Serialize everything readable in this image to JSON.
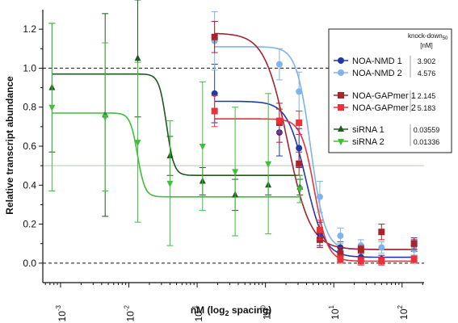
{
  "chart_data": {
    "type": "scatter",
    "xlabel": "nM (log",
    "xlabel_sub": "2",
    "xlabel_tail": " spacing)",
    "ylabel": "Relative transcript abundance",
    "xscale": "log",
    "xlim": [
      0.00055,
      210
    ],
    "ylim": [
      -0.1,
      1.3
    ],
    "y_ticks": [
      "0.0",
      "0.2",
      "0.4",
      "0.6",
      "0.8",
      "1.0",
      "1.2"
    ],
    "x_ticks": [
      {
        "value": 0.001,
        "base": "10",
        "exp": "-3"
      },
      {
        "value": 0.01,
        "base": "10",
        "exp": "-2"
      },
      {
        "value": 0.1,
        "base": "10",
        "exp": "-1"
      },
      {
        "value": 1,
        "base": "10",
        "exp": "0"
      },
      {
        "value": 10,
        "base": "10",
        "exp": "1"
      },
      {
        "value": 100,
        "base": "10",
        "exp": "2"
      }
    ],
    "reference_lines": [
      {
        "y": 1.0,
        "style": "dashed"
      },
      {
        "y": 0.0,
        "style": "dashed"
      },
      {
        "y": 0.5,
        "style": "solid-thin"
      }
    ],
    "legend": {
      "position": "top-right",
      "header": "knock-down",
      "header_sub": "50",
      "unit": "[nM]"
    },
    "series": [
      {
        "name": "NOA-NMD 1",
        "color": "#1f3aa8",
        "marker": "circle",
        "kd50": "3.902",
        "fit": {
          "top": 0.83,
          "bottom": 0.03,
          "ec50": 3.9,
          "slope": 3.2,
          "xmin": 0.18,
          "xmax": 160
        },
        "points": [
          {
            "x": 0.18,
            "y": 0.87,
            "err": 0.15
          },
          {
            "x": 1.6,
            "y": 0.67,
            "err": 0.12
          },
          {
            "x": 3.1,
            "y": 0.59,
            "err": 0.1
          },
          {
            "x": 6.25,
            "y": 0.15,
            "err": 0.06
          },
          {
            "x": 12.5,
            "y": 0.08,
            "err": 0.03
          },
          {
            "x": 25,
            "y": 0.03,
            "err": 0.02
          },
          {
            "x": 50,
            "y": 0.02,
            "err": 0.02
          },
          {
            "x": 150,
            "y": 0.09,
            "err": 0.03
          }
        ]
      },
      {
        "name": "NOA-NMD 2",
        "color": "#7fb3ea",
        "marker": "circle",
        "kd50": "4.576",
        "fit": {
          "top": 1.11,
          "bottom": 0.07,
          "ec50": 4.6,
          "slope": 4.2,
          "xmin": 0.18,
          "xmax": 160
        },
        "points": [
          {
            "x": 0.18,
            "y": 1.14,
            "err": 0.15
          },
          {
            "x": 1.6,
            "y": 1.02,
            "err": 0.08
          },
          {
            "x": 3.1,
            "y": 0.88,
            "err": 0.1
          },
          {
            "x": 6.25,
            "y": 0.34,
            "err": 0.08
          },
          {
            "x": 12.5,
            "y": 0.14,
            "err": 0.04
          },
          {
            "x": 25,
            "y": 0.09,
            "err": 0.03
          },
          {
            "x": 50,
            "y": 0.08,
            "err": 0.03
          },
          {
            "x": 150,
            "y": 0.07,
            "err": 0.03
          }
        ]
      },
      {
        "name": "NOA-GAPmer 1",
        "color": "#a8232e",
        "marker": "square",
        "kd50": "2.145",
        "fit": {
          "top": 1.18,
          "bottom": 0.07,
          "ec50": 2.1,
          "slope": 2.6,
          "xmin": 0.18,
          "xmax": 160
        },
        "points": [
          {
            "x": 0.18,
            "y": 1.16,
            "err": 0.08
          },
          {
            "x": 1.6,
            "y": 0.72,
            "err": 0.1
          },
          {
            "x": 3.1,
            "y": 0.51,
            "err": 0.06
          },
          {
            "x": 6.25,
            "y": 0.12,
            "err": 0.04
          },
          {
            "x": 12.5,
            "y": 0.05,
            "err": 0.03
          },
          {
            "x": 25,
            "y": 0.07,
            "err": 0.02
          },
          {
            "x": 50,
            "y": 0.16,
            "err": 0.04
          },
          {
            "x": 150,
            "y": 0.1,
            "err": 0.03
          }
        ]
      },
      {
        "name": "NOA-GAPmer 2",
        "color": "#e8333a",
        "marker": "square",
        "kd50": "5.183",
        "fit": {
          "top": 0.74,
          "bottom": 0.01,
          "ec50": 5.2,
          "slope": 4.5,
          "xmin": 0.18,
          "xmax": 160
        },
        "points": [
          {
            "x": 0.18,
            "y": 0.78,
            "err": 0.08
          },
          {
            "x": 1.6,
            "y": 0.73,
            "err": 0.06
          },
          {
            "x": 3.1,
            "y": 0.72,
            "err": 0.06
          },
          {
            "x": 6.25,
            "y": 0.17,
            "err": 0.05
          },
          {
            "x": 12.5,
            "y": 0.02,
            "err": 0.02
          },
          {
            "x": 25,
            "y": 0.01,
            "err": 0.02
          },
          {
            "x": 50,
            "y": 0.01,
            "err": 0.02
          },
          {
            "x": 150,
            "y": 0.02,
            "err": 0.02
          }
        ]
      },
      {
        "name": "siRNA 1",
        "color": "#1d5a1d",
        "marker": "triangle-up",
        "kd50": "0.03559",
        "fit": {
          "top": 0.97,
          "bottom": 0.45,
          "ec50": 0.0356,
          "slope": 8,
          "xmin": 0.00075,
          "xmax": 3.2
        },
        "points": [
          {
            "x": 0.00075,
            "y": 0.9,
            "err": 0.33
          },
          {
            "x": 0.0045,
            "y": 0.76,
            "err": 0.52
          },
          {
            "x": 0.0135,
            "y": 1.05,
            "err": 0.3
          },
          {
            "x": 0.04,
            "y": 0.55,
            "err": 0.1
          },
          {
            "x": 0.12,
            "y": 0.42,
            "err": 0.07
          },
          {
            "x": 0.36,
            "y": 0.35,
            "err": 0.08
          },
          {
            "x": 1.1,
            "y": 0.4,
            "err": 0.05
          },
          {
            "x": 3.2,
            "y": 0.39,
            "err": 0.04
          }
        ]
      },
      {
        "name": "siRNA 2",
        "color": "#3fbf3a",
        "marker": "triangle-down",
        "kd50": "0.01336",
        "fit": {
          "top": 0.77,
          "bottom": 0.34,
          "ec50": 0.0134,
          "slope": 8,
          "xmin": 0.00075,
          "xmax": 3.2
        },
        "points": [
          {
            "x": 0.00075,
            "y": 0.8,
            "err": 0.43
          },
          {
            "x": 0.0045,
            "y": 0.75,
            "err": 0.38
          },
          {
            "x": 0.0135,
            "y": 0.62,
            "err": 0.41
          },
          {
            "x": 0.04,
            "y": 0.41,
            "err": 0.32
          },
          {
            "x": 0.12,
            "y": 0.6,
            "err": 0.33
          },
          {
            "x": 0.36,
            "y": 0.47,
            "err": 0.33
          },
          {
            "x": 1.1,
            "y": 0.51,
            "err": 0.36
          },
          {
            "x": 3.2,
            "y": 0.38,
            "err": 0.07
          }
        ]
      }
    ]
  }
}
